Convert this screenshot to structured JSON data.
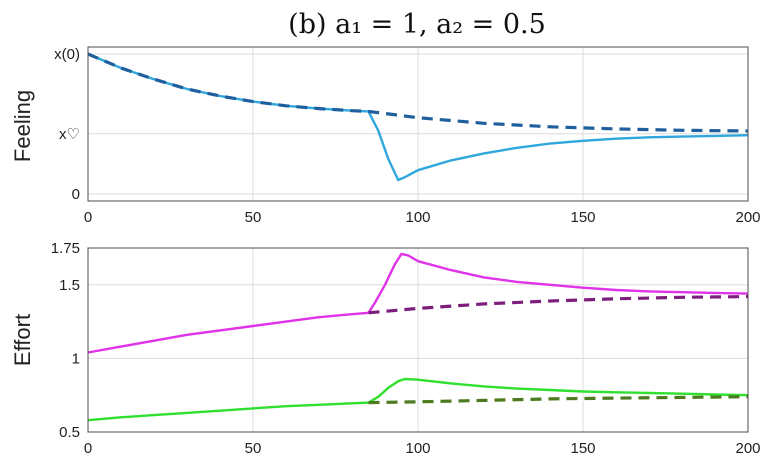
{
  "chart_data": [
    {
      "type": "line",
      "title": "(b) a₁ = 1, a₂ = 0.5",
      "ylabel": "Feeling",
      "xlabel": "",
      "xlim": [
        0,
        200
      ],
      "ylim": [
        -0.05,
        1.05
      ],
      "x_ticks": [
        0,
        50,
        100,
        150,
        200
      ],
      "y_ticks": [
        {
          "value": 0,
          "label": "0"
        },
        {
          "value": 0.43,
          "label": "x♡"
        },
        {
          "value": 1.0,
          "label": "x(0)"
        }
      ],
      "grid": true,
      "series": [
        {
          "style": "solid",
          "color": "#2fa6dc",
          "x": [
            0,
            10,
            20,
            30,
            40,
            50,
            60,
            70,
            80,
            85,
            88,
            91,
            94,
            96,
            100,
            110,
            120,
            130,
            140,
            150,
            160,
            170,
            180,
            190,
            200
          ],
          "y": [
            1.0,
            0.9,
            0.82,
            0.75,
            0.7,
            0.66,
            0.63,
            0.61,
            0.595,
            0.59,
            0.45,
            0.25,
            0.1,
            0.12,
            0.17,
            0.24,
            0.29,
            0.33,
            0.36,
            0.38,
            0.395,
            0.405,
            0.41,
            0.415,
            0.42
          ]
        },
        {
          "style": "dashed",
          "color": "#1f5f9e",
          "x": [
            0,
            10,
            20,
            30,
            40,
            50,
            60,
            70,
            80,
            85,
            100,
            120,
            140,
            160,
            180,
            200
          ],
          "y": [
            1.0,
            0.9,
            0.82,
            0.75,
            0.7,
            0.66,
            0.63,
            0.61,
            0.595,
            0.59,
            0.545,
            0.505,
            0.48,
            0.465,
            0.455,
            0.45
          ]
        }
      ]
    },
    {
      "type": "line",
      "title": "",
      "ylabel": "Effort",
      "xlabel": "",
      "xlim": [
        0,
        200
      ],
      "ylim": [
        0.5,
        1.75
      ],
      "x_ticks": [
        0,
        50,
        100,
        150,
        200
      ],
      "y_ticks": [
        {
          "value": 0.5,
          "label": "0.5"
        },
        {
          "value": 1,
          "label": "1"
        },
        {
          "value": 1.5,
          "label": "1.5"
        },
        {
          "value": 1.75,
          "label": "1.75"
        }
      ],
      "grid": true,
      "series": [
        {
          "style": "solid",
          "color": "#e032e8",
          "x": [
            0,
            10,
            20,
            30,
            40,
            50,
            60,
            70,
            80,
            85,
            87,
            90,
            93,
            95,
            97,
            100,
            110,
            120,
            130,
            140,
            150,
            160,
            170,
            180,
            190,
            200
          ],
          "y": [
            1.04,
            1.08,
            1.12,
            1.16,
            1.19,
            1.22,
            1.25,
            1.28,
            1.3,
            1.31,
            1.38,
            1.5,
            1.64,
            1.71,
            1.7,
            1.66,
            1.6,
            1.55,
            1.52,
            1.5,
            1.48,
            1.465,
            1.455,
            1.45,
            1.445,
            1.44
          ]
        },
        {
          "style": "dashed",
          "color": "#7d1e7d",
          "x": [
            85,
            100,
            120,
            140,
            160,
            180,
            200
          ],
          "y": [
            1.31,
            1.34,
            1.37,
            1.39,
            1.405,
            1.415,
            1.42
          ]
        },
        {
          "style": "solid",
          "color": "#2fe02f",
          "x": [
            0,
            10,
            20,
            30,
            40,
            50,
            60,
            70,
            80,
            85,
            88,
            91,
            94,
            96,
            100,
            110,
            120,
            130,
            140,
            150,
            160,
            170,
            180,
            190,
            200
          ],
          "y": [
            0.58,
            0.6,
            0.615,
            0.63,
            0.645,
            0.66,
            0.675,
            0.685,
            0.695,
            0.7,
            0.74,
            0.8,
            0.845,
            0.86,
            0.855,
            0.83,
            0.81,
            0.795,
            0.785,
            0.775,
            0.77,
            0.765,
            0.76,
            0.755,
            0.75
          ]
        },
        {
          "style": "dashed",
          "color": "#4d7a1f",
          "x": [
            85,
            100,
            120,
            140,
            160,
            180,
            200
          ],
          "y": [
            0.7,
            0.705,
            0.715,
            0.725,
            0.73,
            0.735,
            0.74
          ]
        }
      ]
    }
  ]
}
